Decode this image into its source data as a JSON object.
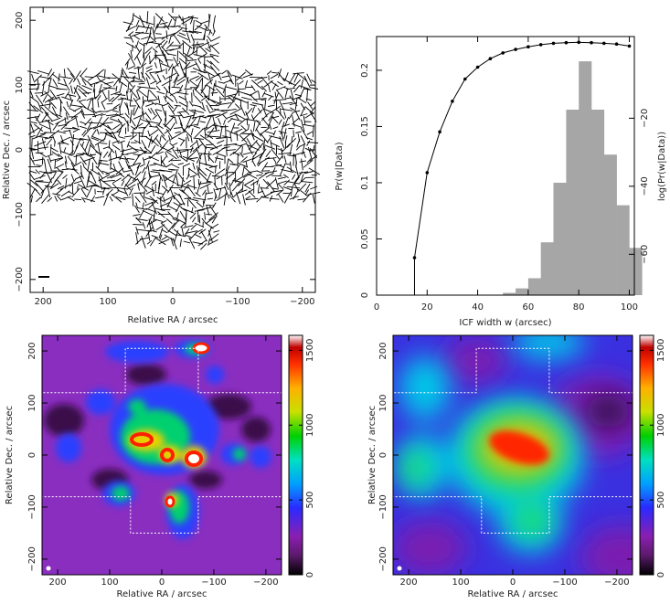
{
  "chart_data": [
    {
      "type": "scatter",
      "panel": "polarisation-vector-map",
      "xlabel": "Relative RA / arcsec",
      "ylabel": "Relative Dec. / arcsec",
      "xlim": [
        220,
        -220
      ],
      "ylim": [
        -220,
        220
      ],
      "x_ticks": [
        "200",
        "100",
        "0",
        "−100",
        "−200"
      ],
      "y_ticks": [
        "−200",
        "−100",
        "0",
        "100",
        "200"
      ],
      "grid": false,
      "coverage_cross": [
        [
          -70,
          205
        ],
        [
          70,
          205
        ],
        [
          70,
          120
        ],
        [
          230,
          120
        ],
        [
          230,
          -80
        ],
        [
          60,
          -80
        ],
        [
          60,
          -150
        ],
        [
          -70,
          -150
        ],
        [
          -70,
          -80
        ],
        [
          -230,
          -80
        ],
        [
          -230,
          120
        ],
        [
          -70,
          120
        ]
      ]
    },
    {
      "type": "bar",
      "panel": "ICF-width-posterior",
      "xlabel": "ICF width w (arcsec)",
      "ylabel": "Pr(w|Data)",
      "y2label": "log(Pr(w|Data))",
      "xlim": [
        0,
        102
      ],
      "ylim": [
        0,
        0.23
      ],
      "y2lim": [
        -72,
        4
      ],
      "x_ticks": [
        "0",
        "20",
        "40",
        "60",
        "80",
        "100"
      ],
      "y_ticks": [
        "0",
        "0.05",
        "0.1",
        "0.15",
        "0.2"
      ],
      "y2_ticks": [
        "−60",
        "−40",
        "−20"
      ],
      "bin_width": 5,
      "bins": [
        50,
        55,
        60,
        65,
        70,
        75,
        80,
        85,
        90,
        95,
        100
      ],
      "values": [
        0.002,
        0.006,
        0.015,
        0.047,
        0.1,
        0.165,
        0.208,
        0.165,
        0.125,
        0.08,
        0.042
      ],
      "log_curve": {
        "x": [
          15,
          20,
          25,
          30,
          35,
          40,
          45,
          50,
          55,
          60,
          65,
          70,
          75,
          80,
          85,
          90,
          95,
          100
        ],
        "y": [
          -61,
          -36,
          -24,
          -15,
          -8.5,
          -5,
          -2.5,
          -0.8,
          0.2,
          1.0,
          1.6,
          2.0,
          2.2,
          2.3,
          2.2,
          2.0,
          1.8,
          1.2
        ]
      }
    },
    {
      "type": "heatmap",
      "panel": "intensity-map-full-resolution",
      "xlabel": "Relative RA / arcsec",
      "ylabel": "Relative Dec. / arcsec",
      "xlim": [
        230,
        -230
      ],
      "ylim": [
        -230,
        230
      ],
      "x_ticks": [
        "200",
        "100",
        "0",
        "−100",
        "−200"
      ],
      "y_ticks": [
        "−200",
        "−100",
        "0",
        "100",
        "200"
      ],
      "colorbar_ticks": [
        "0",
        "500",
        "1000",
        "1500"
      ],
      "colorbar_range": [
        0,
        1600
      ]
    },
    {
      "type": "heatmap",
      "panel": "intensity-map-smoothed",
      "xlabel": "Relative RA / arcsec",
      "ylabel": "Relative Dec. / arcsec",
      "xlim": [
        230,
        -230
      ],
      "ylim": [
        -230,
        230
      ],
      "x_ticks": [
        "200",
        "100",
        "0",
        "−100",
        "−200"
      ],
      "y_ticks": [
        "−200",
        "−100",
        "0",
        "100",
        "200"
      ],
      "colorbar_ticks": [
        "0",
        "500",
        "1000",
        "1500"
      ],
      "colorbar_range": [
        0,
        1600
      ]
    }
  ]
}
